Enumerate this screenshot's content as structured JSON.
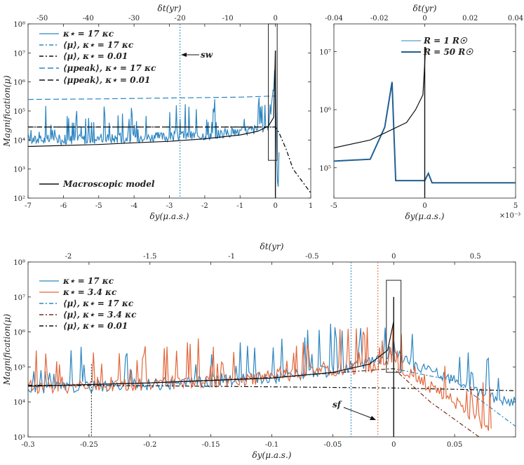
{
  "chart_data": [
    {
      "type": "line",
      "panel": "top-left",
      "xlabel": "δy(μ.a.s.)",
      "ylabel": "Magnification(μ)",
      "x2label": "δt(yr)",
      "xlim": [
        -7,
        1
      ],
      "ylim": [
        100,
        100000000
      ],
      "yscale": "log",
      "xticks": [
        "-7",
        "-6",
        "-5",
        "-4",
        "-3",
        "-2",
        "-1",
        "0",
        "1"
      ],
      "x2ticks": [
        "-50",
        "-40",
        "-30",
        "-20",
        "-10",
        "0"
      ],
      "yticks": [
        "10²",
        "10³",
        "10⁴",
        "10⁵",
        "10⁶",
        "10⁷",
        "10⁸"
      ],
      "legend_position": "upper-left",
      "legend": [
        "κ⋆ = 17 κc",
        "⟨μ⟩, κ⋆ = 17 κc",
        "⟨μ⟩, κ⋆ = 0.01",
        "⟨μpeak⟩, κ⋆ = 17 κc",
        "⟨μpeak⟩, κ⋆ = 0.01",
        "Macroscopic model"
      ],
      "annotation": "sw",
      "colors": {
        "blue": "#2e86c1",
        "black": "#111111",
        "dark_red": "#7b2d1a",
        "orange": "#e2683c"
      },
      "series": [
        {
          "name": "κ⋆ = 17 κc",
          "style": "blue-solid-spiky",
          "x": [
            -7,
            -6,
            -5,
            -4,
            -3,
            -2,
            -1,
            -0.5,
            -0.2,
            0,
            0.05,
            0.1
          ],
          "y": [
            10000,
            10500,
            11000,
            12000,
            13000,
            15000,
            19000,
            24000,
            30000,
            1000000,
            500,
            200
          ]
        },
        {
          "name": "⟨μ⟩, κ⋆ = 17 κc",
          "style": "blue-dashdot",
          "x": [
            -7,
            -2,
            -1,
            0,
            0.1,
            0.3,
            0.5,
            1
          ],
          "y": [
            28000,
            28000,
            28000,
            28000,
            18000,
            5000,
            1000,
            150
          ]
        },
        {
          "name": "⟨μ⟩, κ⋆ = 0.01",
          "style": "black-dashdot",
          "x": [
            -7,
            -2,
            -1,
            0,
            0.1,
            0.3,
            0.5,
            1
          ],
          "y": [
            28000,
            28000,
            28000,
            28000,
            18000,
            5000,
            1000,
            150
          ]
        },
        {
          "name": "⟨μpeak⟩, κ⋆ = 17 κc",
          "style": "blue-dashed",
          "x": [
            -7,
            -5,
            -3,
            -1,
            0
          ],
          "y": [
            250000,
            260000,
            280000,
            300000,
            330000
          ]
        },
        {
          "name": "⟨μpeak⟩, κ⋆ = 0.01",
          "style": "black-dashed",
          "x": [
            -7,
            -5,
            -3,
            -1,
            0
          ],
          "y": [
            28000,
            28000,
            28000,
            28000,
            28000
          ]
        },
        {
          "name": "Macroscopic model",
          "style": "black-solid",
          "x": [
            -7,
            -6,
            -5,
            -4,
            -3,
            -2,
            -1,
            -0.5,
            -0.2,
            -0.05,
            0
          ],
          "y": [
            6000,
            6500,
            7000,
            8000,
            9000,
            11000,
            15000,
            20000,
            30000,
            60000,
            12000000
          ]
        }
      ]
    },
    {
      "type": "line",
      "panel": "top-right",
      "xlabel": "δy(μ.a.s.)",
      "x2label": "δt(yr)",
      "xlim": [
        -5,
        5
      ],
      "xscale_label": "×10⁻³",
      "ylim": [
        30000,
        30000000
      ],
      "yscale": "log",
      "xticks": [
        "-5",
        "0",
        "5"
      ],
      "x2ticks": [
        "-0.04",
        "-0.02",
        "0",
        "0.02",
        "0.04"
      ],
      "yticks": [
        "10⁵",
        "10⁶",
        "10⁷"
      ],
      "legend_position": "upper-right",
      "legend": [
        "R = 1 R☉",
        "R = 50 R☉"
      ],
      "series": [
        {
          "name": "R = 1 R☉",
          "style": "blue-thin",
          "x": [
            -5,
            -3,
            -2.2,
            -1.8,
            -1.6,
            0,
            0.2,
            0.4,
            5
          ],
          "y": [
            130000,
            140000,
            500000,
            3000000,
            60000,
            60000,
            80000,
            55000,
            55000
          ]
        },
        {
          "name": "R = 50 R☉",
          "style": "blue-thick",
          "x": [
            -5,
            -3,
            -2.2,
            -1.8,
            -1.6,
            0,
            0.2,
            0.4,
            5
          ],
          "y": [
            130000,
            140000,
            500000,
            3000000,
            60000,
            60000,
            80000,
            55000,
            55000
          ]
        },
        {
          "name": "Macroscopic model",
          "style": "black-solid",
          "x": [
            -5,
            -3,
            -1,
            -0.5,
            -0.1,
            0.05
          ],
          "y": [
            220000,
            300000,
            600000,
            1000000,
            1800000,
            12000000
          ]
        }
      ]
    },
    {
      "type": "line",
      "panel": "bottom",
      "xlabel": "δy(μ.a.s.)",
      "ylabel": "Magnification(μ)",
      "x2label": "δt(yr)",
      "xlim": [
        -0.3,
        0.1
      ],
      "ylim": [
        1000,
        100000000
      ],
      "yscale": "log",
      "xticks": [
        "-0.3",
        "-0.25",
        "-0.2",
        "-0.15",
        "-0.1",
        "-0.05",
        "0",
        "0.05"
      ],
      "x2ticks": [
        "-2",
        "-1.5",
        "-1",
        "-0.5",
        "0",
        "0.5"
      ],
      "yticks": [
        "10³",
        "10⁴",
        "10⁵",
        "10⁶",
        "10⁷",
        "10⁸"
      ],
      "legend_position": "upper-left",
      "legend": [
        "κ⋆ = 17 κc",
        "κ⋆ = 3.4 κc",
        "⟨μ⟩, κ⋆ = 17 κc",
        "⟨μ⟩, κ⋆ = 3.4 κc",
        "⟨μ⟩, κ⋆ = 0.01"
      ],
      "annotation": "sf",
      "series": [
        {
          "name": "κ⋆ = 17 κc",
          "style": "blue-solid-spiky",
          "x": [
            -0.3,
            -0.25,
            -0.2,
            -0.15,
            -0.1,
            -0.05,
            0,
            0.05,
            0.1
          ],
          "y": [
            25000,
            28000,
            32000,
            38000,
            50000,
            80000,
            200000,
            40000,
            8000
          ]
        },
        {
          "name": "κ⋆ = 3.4 κc",
          "style": "orange-solid-spiky",
          "x": [
            -0.3,
            -0.25,
            -0.2,
            -0.15,
            -0.1,
            -0.05,
            0,
            0.05,
            0.08
          ],
          "y": [
            25000,
            28000,
            32000,
            38000,
            50000,
            80000,
            120000,
            10000,
            1500
          ]
        },
        {
          "name": "⟨μ⟩, κ⋆ = 17 κc",
          "style": "blue-dashdot",
          "x": [
            -0.3,
            -0.2,
            -0.1,
            0,
            0.05,
            0.1
          ],
          "y": [
            28000,
            35000,
            50000,
            90000,
            40000,
            2000
          ]
        },
        {
          "name": "⟨μ⟩, κ⋆ = 3.4 κc",
          "style": "darkred-dashdot",
          "x": [
            -0.3,
            -0.2,
            -0.1,
            0,
            0.03,
            0.07
          ],
          "y": [
            28000,
            35000,
            50000,
            90000,
            10000,
            1000
          ]
        },
        {
          "name": "⟨μ⟩, κ⋆ = 0.01",
          "style": "black-dashdot",
          "x": [
            -0.3,
            -0.2,
            -0.1,
            0,
            0.05,
            0.1
          ],
          "y": [
            30000,
            29000,
            27000,
            25000,
            23000,
            21000
          ]
        },
        {
          "name": "Macroscopic model",
          "style": "black-solid",
          "x": [
            -0.3,
            -0.2,
            -0.1,
            -0.05,
            -0.02,
            -0.005,
            0
          ],
          "y": [
            28000,
            35000,
            48000,
            70000,
            120000,
            300000,
            2000000
          ]
        }
      ]
    }
  ]
}
